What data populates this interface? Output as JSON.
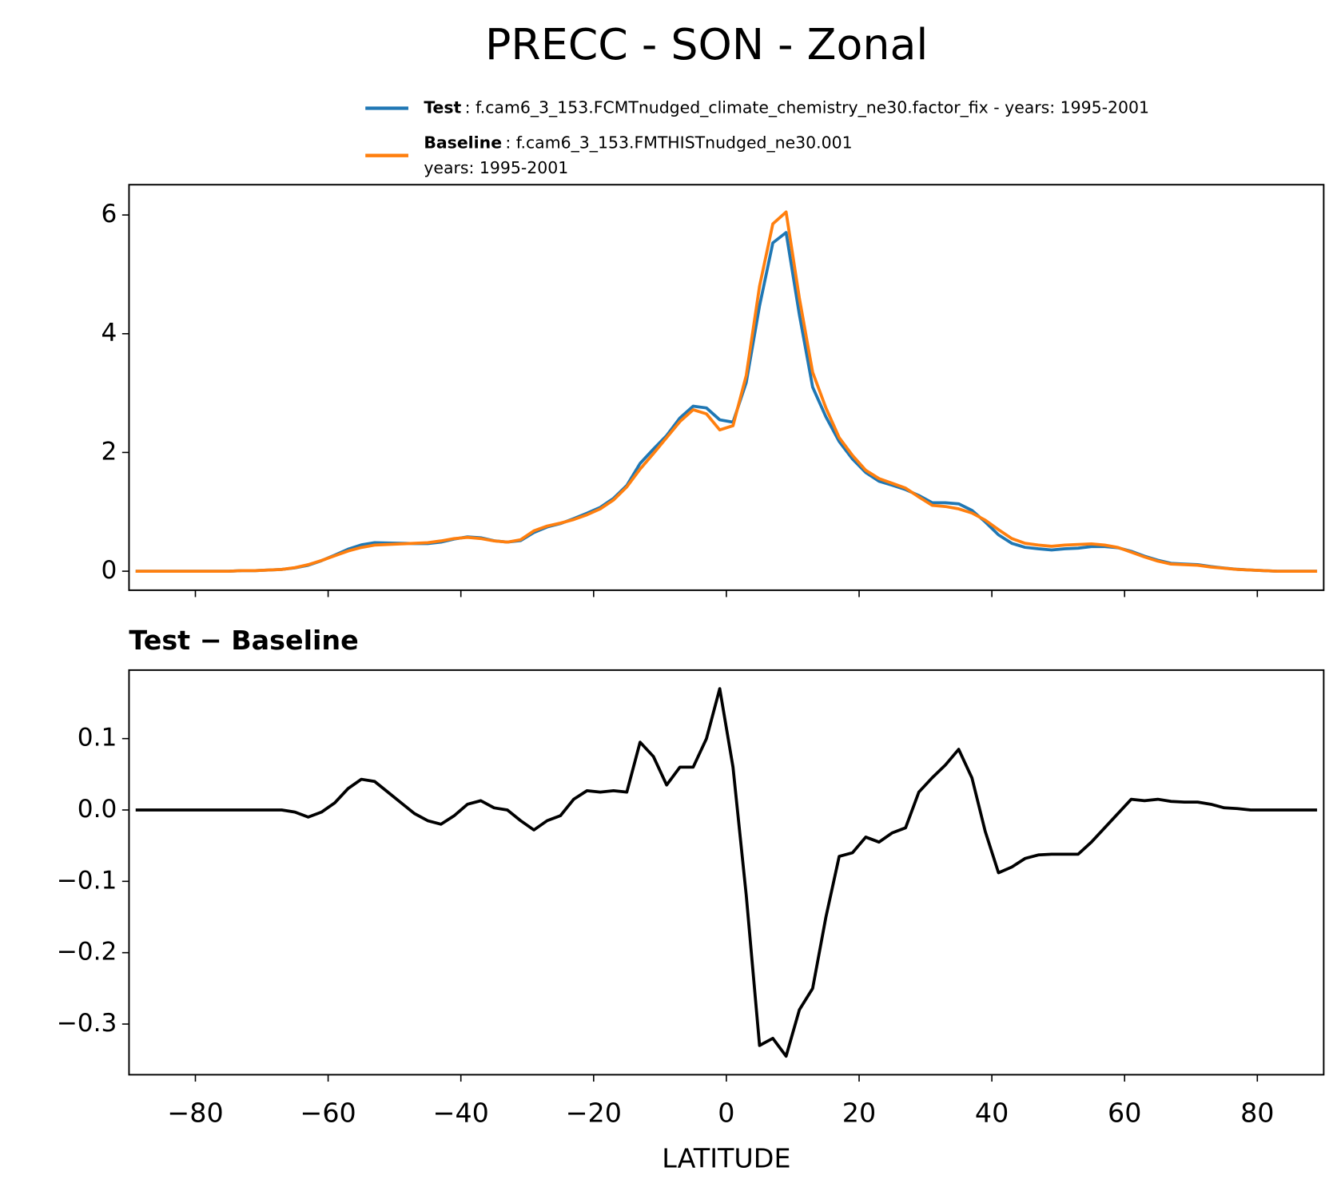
{
  "chart_data": [
    {
      "type": "line",
      "title": "PRECC - SON - Zonal",
      "x": [
        -89,
        -87,
        -85,
        -83,
        -81,
        -79,
        -77,
        -75,
        -73,
        -71,
        -69,
        -67,
        -65,
        -63,
        -61,
        -59,
        -57,
        -55,
        -53,
        -51,
        -49,
        -47,
        -45,
        -43,
        -41,
        -39,
        -37,
        -35,
        -33,
        -31,
        -29,
        -27,
        -25,
        -23,
        -21,
        -19,
        -17,
        -15,
        -13,
        -11,
        -9,
        -7,
        -5,
        -3,
        -1,
        1,
        3,
        5,
        7,
        9,
        11,
        13,
        15,
        17,
        19,
        21,
        23,
        25,
        27,
        29,
        31,
        33,
        35,
        37,
        39,
        41,
        43,
        45,
        47,
        49,
        51,
        53,
        55,
        57,
        59,
        61,
        63,
        65,
        67,
        69,
        71,
        73,
        75,
        77,
        79,
        81,
        83,
        85,
        87,
        89
      ],
      "series": [
        {
          "name": "Test",
          "label_lines": [
            ": f.cam6_3_153.FCMTnudged_climate_chemistry_ne30.factor_fix - years: 1995-2001"
          ],
          "color": "#1f77b4",
          "values": [
            0,
            0,
            0,
            0,
            0,
            0,
            0,
            0,
            0.01,
            0.01,
            0.02,
            0.03,
            0.057,
            0.1,
            0.177,
            0.27,
            0.37,
            0.443,
            0.48,
            0.475,
            0.47,
            0.465,
            0.465,
            0.49,
            0.542,
            0.578,
            0.563,
            0.513,
            0.49,
            0.515,
            0.652,
            0.745,
            0.802,
            0.885,
            0.977,
            1.075,
            1.227,
            1.445,
            1.815,
            2.055,
            2.285,
            2.58,
            2.78,
            2.75,
            2.55,
            2.51,
            3.18,
            4.47,
            5.53,
            5.705,
            4.32,
            3.1,
            2.6,
            2.185,
            1.89,
            1.662,
            1.515,
            1.448,
            1.375,
            1.275,
            1.155,
            1.153,
            1.135,
            1.025,
            0.83,
            0.612,
            0.47,
            0.402,
            0.377,
            0.358,
            0.378,
            0.388,
            0.415,
            0.415,
            0.395,
            0.335,
            0.253,
            0.185,
            0.132,
            0.121,
            0.111,
            0.078,
            0.053,
            0.032,
            0.02,
            0.01,
            0,
            0,
            0,
            0
          ]
        },
        {
          "name": "Baseline",
          "label_lines": [
            ": f.cam6_3_153.FMTHISTnudged_ne30.001",
            "years: 1995-2001"
          ],
          "color": "#ff7f0e",
          "values": [
            0,
            0,
            0,
            0,
            0,
            0,
            0,
            0,
            0.01,
            0.01,
            0.02,
            0.03,
            0.06,
            0.11,
            0.18,
            0.26,
            0.34,
            0.4,
            0.44,
            0.45,
            0.46,
            0.47,
            0.48,
            0.51,
            0.55,
            0.57,
            0.55,
            0.51,
            0.49,
            0.53,
            0.68,
            0.76,
            0.81,
            0.87,
            0.95,
            1.05,
            1.2,
            1.42,
            1.72,
            1.98,
            2.25,
            2.52,
            2.72,
            2.65,
            2.38,
            2.45,
            3.3,
            4.8,
            5.85,
            6.05,
            4.6,
            3.35,
            2.75,
            2.25,
            1.95,
            1.7,
            1.56,
            1.48,
            1.4,
            1.25,
            1.11,
            1.09,
            1.05,
            0.98,
            0.86,
            0.7,
            0.55,
            0.47,
            0.44,
            0.42,
            0.44,
            0.45,
            0.46,
            0.44,
            0.4,
            0.32,
            0.24,
            0.17,
            0.12,
            0.11,
            0.1,
            0.07,
            0.05,
            0.03,
            0.02,
            0.01,
            0,
            0,
            0,
            0
          ]
        }
      ],
      "xlim": [
        -90,
        90
      ],
      "xticks": [
        -80,
        -60,
        -40,
        -20,
        0,
        20,
        40,
        60,
        80
      ],
      "ylim": [
        -0.32,
        6.51
      ],
      "yticks": [
        0,
        2,
        4,
        6
      ]
    },
    {
      "type": "line",
      "title": "Test − Baseline",
      "xlabel": "LATITUDE",
      "x": [
        -89,
        -87,
        -85,
        -83,
        -81,
        -79,
        -77,
        -75,
        -73,
        -71,
        -69,
        -67,
        -65,
        -63,
        -61,
        -59,
        -57,
        -55,
        -53,
        -51,
        -49,
        -47,
        -45,
        -43,
        -41,
        -39,
        -37,
        -35,
        -33,
        -31,
        -29,
        -27,
        -25,
        -23,
        -21,
        -19,
        -17,
        -15,
        -13,
        -11,
        -9,
        -7,
        -5,
        -3,
        -1,
        1,
        3,
        5,
        7,
        9,
        11,
        13,
        15,
        17,
        19,
        21,
        23,
        25,
        27,
        29,
        31,
        33,
        35,
        37,
        39,
        41,
        43,
        45,
        47,
        49,
        51,
        53,
        55,
        57,
        59,
        61,
        63,
        65,
        67,
        69,
        71,
        73,
        75,
        77,
        79,
        81,
        83,
        85,
        87,
        89
      ],
      "series": [
        {
          "color": "#000000",
          "values": [
            0,
            0,
            0,
            0,
            0,
            0,
            0,
            0,
            0,
            0,
            0,
            0,
            -0.003,
            -0.01,
            -0.003,
            0.01,
            0.03,
            0.043,
            0.04,
            0.025,
            0.01,
            -0.005,
            -0.015,
            -0.02,
            -0.008,
            0.008,
            0.013,
            0.003,
            0,
            -0.015,
            -0.028,
            -0.015,
            -0.008,
            0.015,
            0.027,
            0.025,
            0.027,
            0.025,
            0.095,
            0.075,
            0.035,
            0.06,
            0.06,
            0.1,
            0.17,
            0.06,
            -0.12,
            -0.33,
            -0.32,
            -0.345,
            -0.28,
            -0.25,
            -0.15,
            -0.065,
            -0.06,
            -0.038,
            -0.045,
            -0.032,
            -0.025,
            0.025,
            0.045,
            0.063,
            0.085,
            0.045,
            -0.03,
            -0.088,
            -0.08,
            -0.068,
            -0.063,
            -0.062,
            -0.062,
            -0.062,
            -0.045,
            -0.025,
            -0.005,
            0.015,
            0.013,
            0.015,
            0.012,
            0.011,
            0.011,
            0.008,
            0.003,
            0.002,
            0,
            0,
            0,
            0,
            0,
            0
          ]
        }
      ],
      "xlim": [
        -90,
        90
      ],
      "xticks": [
        {
          "value": -80,
          "label": "−80"
        },
        {
          "value": -60,
          "label": "−60"
        },
        {
          "value": -40,
          "label": "−40"
        },
        {
          "value": -20,
          "label": "−20"
        },
        0,
        20,
        40,
        60,
        80
      ],
      "ylim": [
        -0.371,
        0.196
      ],
      "yticks": [
        {
          "value": -0.3,
          "label": "−0.3"
        },
        {
          "value": -0.2,
          "label": "−0.2"
        },
        {
          "value": -0.1,
          "label": "−0.1"
        },
        {
          "value": 0,
          "label": "0.0"
        },
        0.1
      ]
    }
  ]
}
